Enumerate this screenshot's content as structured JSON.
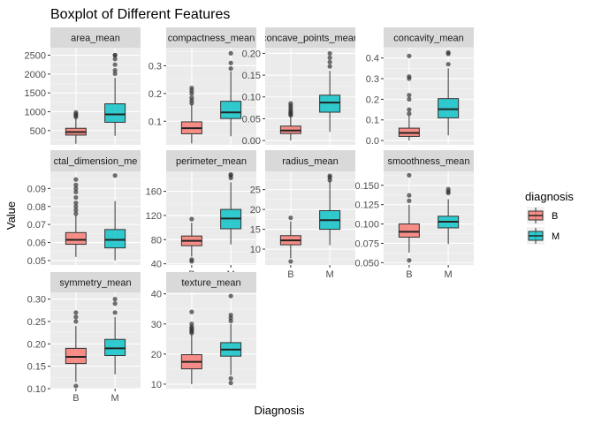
{
  "chart_data": {
    "type": "boxplot-faceted",
    "title": "Boxplot of Different Features",
    "xlabel": "Diagnosis",
    "ylabel": "Value",
    "categories": [
      "B",
      "M"
    ],
    "legend": {
      "title": "diagnosis",
      "position": "right",
      "entries": [
        {
          "label": "B",
          "color": "#F8766D"
        },
        {
          "label": "M",
          "color": "#00BFC4"
        }
      ]
    },
    "grid": true,
    "facets": [
      {
        "name": "area_mean",
        "ylim": [
          120,
          2700
        ],
        "yticks": [
          500,
          1000,
          1500,
          2000,
          2500
        ],
        "boxes": [
          {
            "category": "B",
            "min": 150,
            "q1": 380,
            "median": 460,
            "q3": 560,
            "max": 830,
            "outliers": [
              860,
              900,
              930,
              980
            ]
          },
          {
            "category": "M",
            "min": 360,
            "q1": 720,
            "median": 930,
            "q3": 1210,
            "max": 1900,
            "outliers": [
              2010,
              2100,
              2250,
              2400,
              2500,
              2501
            ]
          }
        ]
      },
      {
        "name": "compactness_mean",
        "ylim": [
          0.015,
          0.365
        ],
        "yticks": [
          0.1,
          0.2,
          0.3
        ],
        "boxes": [
          {
            "category": "B",
            "min": 0.02,
            "q1": 0.055,
            "median": 0.075,
            "q3": 0.098,
            "max": 0.16,
            "outliers": [
              0.165,
              0.175,
              0.185,
              0.2,
              0.21,
              0.22
            ]
          },
          {
            "category": "M",
            "min": 0.046,
            "q1": 0.11,
            "median": 0.132,
            "q3": 0.172,
            "max": 0.28,
            "outliers": [
              0.29,
              0.31,
              0.345
            ]
          }
        ]
      },
      {
        "name": "concave_points_mean",
        "ylim": [
          -0.01,
          0.213
        ],
        "yticks": [
          0.0,
          0.05,
          0.1,
          0.15,
          0.2
        ],
        "boxes": [
          {
            "category": "B",
            "min": 0.0,
            "q1": 0.016,
            "median": 0.023,
            "q3": 0.033,
            "max": 0.055,
            "outliers": [
              0.058,
              0.06,
              0.063,
              0.066,
              0.07,
              0.075,
              0.08,
              0.085
            ]
          },
          {
            "category": "M",
            "min": 0.02,
            "q1": 0.065,
            "median": 0.087,
            "q3": 0.104,
            "max": 0.16,
            "outliers": [
              0.17,
              0.18,
              0.19,
              0.2
            ]
          }
        ]
      },
      {
        "name": "concavity_mean",
        "ylim": [
          -0.021,
          0.45
        ],
        "yticks": [
          0.0,
          0.1,
          0.2,
          0.3,
          0.4
        ],
        "boxes": [
          {
            "category": "B",
            "min": 0.0,
            "q1": 0.02,
            "median": 0.037,
            "q3": 0.06,
            "max": 0.12,
            "outliers": [
              0.13,
              0.15,
              0.2,
              0.22,
              0.3,
              0.31,
              0.41
            ]
          },
          {
            "category": "M",
            "min": 0.025,
            "q1": 0.11,
            "median": 0.152,
            "q3": 0.203,
            "max": 0.35,
            "outliers": [
              0.37,
              0.42,
              0.427
            ]
          }
        ]
      },
      {
        "name": "fractal_dimension_mean",
        "display_label": "ctal_dimension_me",
        "ylim": [
          0.0475,
          0.0995
        ],
        "yticks": [
          0.05,
          0.06,
          0.07,
          0.08,
          0.09
        ],
        "boxes": [
          {
            "category": "B",
            "min": 0.052,
            "q1": 0.059,
            "median": 0.0615,
            "q3": 0.0655,
            "max": 0.075,
            "outliers": [
              0.076,
              0.078,
              0.08,
              0.082,
              0.085,
              0.088,
              0.09,
              0.092,
              0.095
            ]
          },
          {
            "category": "M",
            "min": 0.05,
            "q1": 0.057,
            "median": 0.0615,
            "q3": 0.0672,
            "max": 0.083,
            "outliers": [
              0.0972
            ]
          }
        ]
      },
      {
        "name": "perimeter_mean",
        "ylim": [
          38,
          193
        ],
        "yticks": [
          40,
          80,
          120,
          160
        ],
        "boxes": [
          {
            "category": "B",
            "min": 52,
            "q1": 70,
            "median": 78,
            "q3": 86,
            "max": 108,
            "outliers": [
              44,
              47,
              114
            ]
          },
          {
            "category": "M",
            "min": 72,
            "q1": 98,
            "median": 115,
            "q3": 130,
            "max": 175,
            "outliers": [
              182,
              186,
              188
            ]
          }
        ]
      },
      {
        "name": "radius_mean",
        "ylim": [
          6,
          29.6
        ],
        "yticks": [
          10,
          15,
          20,
          25
        ],
        "boxes": [
          {
            "category": "B",
            "min": 7.7,
            "q1": 11.1,
            "median": 12.2,
            "q3": 13.4,
            "max": 17,
            "outliers": [
              6.9,
              17.9
            ]
          },
          {
            "category": "M",
            "min": 11,
            "q1": 15,
            "median": 17.3,
            "q3": 19.7,
            "max": 27.2,
            "outliers": [
              27.4,
              28.1,
              28.5
            ]
          }
        ]
      },
      {
        "name": "smoothness_mean",
        "ylim": [
          0.047,
          0.168
        ],
        "yticks": [
          0.05,
          0.075,
          0.1,
          0.125,
          0.15
        ],
        "boxes": [
          {
            "category": "B",
            "min": 0.063,
            "q1": 0.083,
            "median": 0.09,
            "q3": 0.1,
            "max": 0.125,
            "outliers": [
              0.053,
              0.13,
              0.137,
              0.163
            ]
          },
          {
            "category": "M",
            "min": 0.074,
            "q1": 0.095,
            "median": 0.103,
            "q3": 0.11,
            "max": 0.132,
            "outliers": [
              0.14,
              0.142,
              0.145
            ]
          }
        ]
      },
      {
        "name": "symmetry_mean",
        "ylim": [
          0.1,
          0.315
        ],
        "yticks": [
          0.1,
          0.15,
          0.2,
          0.25,
          0.3
        ],
        "boxes": [
          {
            "category": "B",
            "min": 0.115,
            "q1": 0.156,
            "median": 0.171,
            "q3": 0.19,
            "max": 0.24,
            "outliers": [
              0.106,
              0.25,
              0.26,
              0.27
            ]
          },
          {
            "category": "M",
            "min": 0.132,
            "q1": 0.174,
            "median": 0.19,
            "q3": 0.21,
            "max": 0.26,
            "outliers": [
              0.27,
              0.29,
              0.3
            ]
          }
        ]
      },
      {
        "name": "texture_mean",
        "ylim": [
          8.5,
          40.5
        ],
        "yticks": [
          10,
          20,
          30,
          40
        ],
        "boxes": [
          {
            "category": "B",
            "min": 10,
            "q1": 15.1,
            "median": 17.4,
            "q3": 19.8,
            "max": 26.5,
            "outliers": [
              27,
              27.5,
              28,
              28.5,
              29,
              30,
              34
            ]
          },
          {
            "category": "M",
            "min": 13,
            "q1": 19.3,
            "median": 21.5,
            "q3": 23.8,
            "max": 30,
            "outliers": [
              10.4,
              11.9,
              31,
              32,
              33,
              39.3
            ]
          }
        ]
      }
    ]
  }
}
